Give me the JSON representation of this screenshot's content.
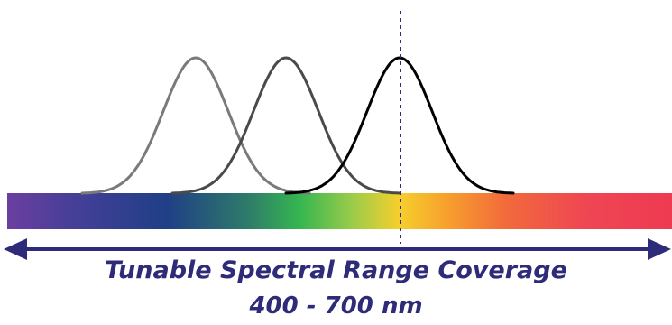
{
  "caption": {
    "title": "Tunable Spectral Range Coverage",
    "range": "400 - 700 nm"
  },
  "colors": {
    "text": "#2e2c79",
    "arrow": "#2e2c79",
    "dashed_marker": "#2e2c79",
    "curves": [
      "#7a7a7a",
      "#4a4a4a",
      "#000000"
    ]
  },
  "spectrum_stops": [
    {
      "offset": 0.0,
      "color": "#6a3fa0"
    },
    {
      "offset": 0.12,
      "color": "#3f3f96"
    },
    {
      "offset": 0.24,
      "color": "#203f86"
    },
    {
      "offset": 0.36,
      "color": "#2e7a6a"
    },
    {
      "offset": 0.44,
      "color": "#35b650"
    },
    {
      "offset": 0.52,
      "color": "#9ccc4a"
    },
    {
      "offset": 0.59,
      "color": "#f6cf2c"
    },
    {
      "offset": 0.66,
      "color": "#f7a12d"
    },
    {
      "offset": 0.75,
      "color": "#f26a3b"
    },
    {
      "offset": 0.87,
      "color": "#ef4653"
    },
    {
      "offset": 1.0,
      "color": "#ee3a52"
    }
  ],
  "icons": {
    "arrow": "double-headed-arrow-icon"
  }
}
